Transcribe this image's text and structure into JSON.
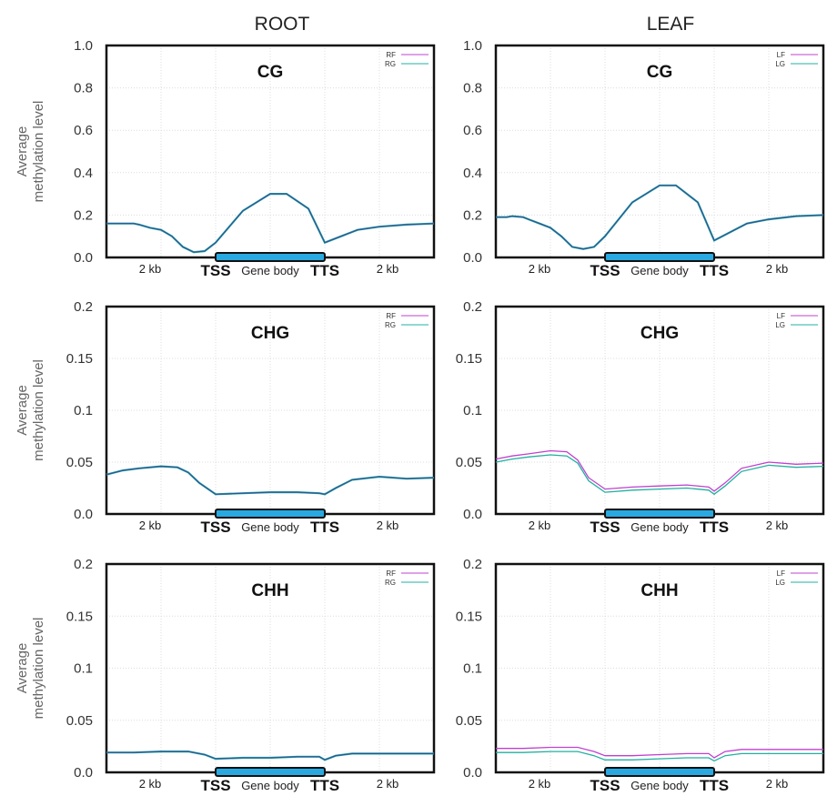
{
  "figure": {
    "column_titles": [
      "ROOT",
      "LEAF"
    ],
    "ylabel_lines": [
      "Average",
      "methylation level"
    ],
    "xaxis_labels": {
      "left_flank": "2 kb",
      "tss": "TSS",
      "gene_body": "Gene body",
      "tts": "TTS",
      "right_flank": "2 kb"
    },
    "colors": {
      "primary_series": "#c040d0",
      "secondary_series": "#20b0a0",
      "blend_line": "#3a4a9a",
      "gene_bar": "#29a9e0"
    }
  },
  "chart_data": [
    {
      "type": "line",
      "column": "ROOT",
      "title": "CG",
      "ylim": [
        0,
        1.0
      ],
      "yticks": [
        0.0,
        0.2,
        0.4,
        0.6,
        0.8,
        1.0
      ],
      "ytick_labels": [
        "0.0",
        "0.2",
        "0.4",
        "0.6",
        "0.8",
        "1.0"
      ],
      "grid": true,
      "legend_placement": "top-right",
      "x": [
        0,
        0.1,
        0.2,
        0.3,
        0.5,
        0.6,
        0.8,
        1.0,
        1.2,
        1.4,
        1.6,
        1.8,
        2.0,
        2.5,
        3.0,
        3.3,
        3.7,
        4.0,
        4.3,
        4.6,
        5.0,
        5.5,
        6.0
      ],
      "series": [
        {
          "name": "RF",
          "values": [
            0.16,
            0.16,
            0.16,
            0.16,
            0.16,
            0.155,
            0.14,
            0.13,
            0.1,
            0.05,
            0.025,
            0.03,
            0.07,
            0.22,
            0.3,
            0.3,
            0.23,
            0.07,
            0.1,
            0.13,
            0.145,
            0.155,
            0.16
          ]
        },
        {
          "name": "RG",
          "values": [
            0.16,
            0.16,
            0.16,
            0.16,
            0.16,
            0.155,
            0.14,
            0.13,
            0.1,
            0.05,
            0.025,
            0.03,
            0.07,
            0.22,
            0.3,
            0.3,
            0.23,
            0.07,
            0.1,
            0.13,
            0.145,
            0.155,
            0.16
          ]
        }
      ]
    },
    {
      "type": "line",
      "column": "LEAF",
      "title": "CG",
      "ylim": [
        0,
        1.0
      ],
      "yticks": [
        0.0,
        0.2,
        0.4,
        0.6,
        0.8,
        1.0
      ],
      "ytick_labels": [
        "0.0",
        "0.2",
        "0.4",
        "0.6",
        "0.8",
        "1.0"
      ],
      "grid": true,
      "legend_placement": "top-right",
      "x": [
        0,
        0.1,
        0.2,
        0.3,
        0.5,
        0.6,
        0.8,
        1.0,
        1.2,
        1.4,
        1.6,
        1.8,
        2.0,
        2.5,
        3.0,
        3.3,
        3.7,
        4.0,
        4.3,
        4.6,
        5.0,
        5.5,
        6.0
      ],
      "series": [
        {
          "name": "LF",
          "values": [
            0.19,
            0.19,
            0.19,
            0.195,
            0.19,
            0.18,
            0.16,
            0.14,
            0.1,
            0.05,
            0.04,
            0.05,
            0.1,
            0.26,
            0.34,
            0.34,
            0.26,
            0.08,
            0.12,
            0.16,
            0.18,
            0.195,
            0.2
          ]
        },
        {
          "name": "LG",
          "values": [
            0.19,
            0.19,
            0.19,
            0.195,
            0.19,
            0.18,
            0.16,
            0.14,
            0.1,
            0.05,
            0.04,
            0.05,
            0.1,
            0.26,
            0.34,
            0.34,
            0.26,
            0.08,
            0.12,
            0.16,
            0.18,
            0.195,
            0.2
          ]
        }
      ]
    },
    {
      "type": "line",
      "column": "ROOT",
      "title": "CHG",
      "ylim": [
        0,
        0.2
      ],
      "yticks": [
        0.0,
        0.05,
        0.1,
        0.15,
        0.2
      ],
      "ytick_labels": [
        "0.0",
        "0.05",
        "0.1",
        "0.15",
        "0.2"
      ],
      "grid": true,
      "legend_placement": "top-right",
      "x": [
        0,
        0.3,
        0.6,
        1.0,
        1.3,
        1.5,
        1.7,
        2.0,
        2.5,
        3.0,
        3.5,
        3.9,
        4.0,
        4.2,
        4.5,
        5.0,
        5.5,
        6.0
      ],
      "series": [
        {
          "name": "RF",
          "values": [
            0.038,
            0.042,
            0.044,
            0.046,
            0.045,
            0.04,
            0.03,
            0.019,
            0.02,
            0.021,
            0.021,
            0.02,
            0.019,
            0.025,
            0.033,
            0.036,
            0.034,
            0.035
          ]
        },
        {
          "name": "RG",
          "values": [
            0.038,
            0.042,
            0.044,
            0.046,
            0.045,
            0.04,
            0.03,
            0.019,
            0.02,
            0.021,
            0.021,
            0.02,
            0.019,
            0.025,
            0.033,
            0.036,
            0.034,
            0.035
          ]
        }
      ]
    },
    {
      "type": "line",
      "column": "LEAF",
      "title": "CHG",
      "ylim": [
        0,
        0.2
      ],
      "yticks": [
        0.0,
        0.05,
        0.1,
        0.15,
        0.2
      ],
      "ytick_labels": [
        "0.0",
        "0.05",
        "0.1",
        "0.15",
        "0.2"
      ],
      "grid": true,
      "legend_placement": "top-right",
      "x": [
        0,
        0.3,
        0.6,
        1.0,
        1.3,
        1.5,
        1.7,
        2.0,
        2.5,
        3.0,
        3.5,
        3.9,
        4.0,
        4.2,
        4.5,
        5.0,
        5.5,
        6.0
      ],
      "series": [
        {
          "name": "LF",
          "values": [
            0.053,
            0.056,
            0.058,
            0.061,
            0.06,
            0.052,
            0.035,
            0.024,
            0.026,
            0.027,
            0.028,
            0.026,
            0.022,
            0.03,
            0.044,
            0.05,
            0.048,
            0.049
          ]
        },
        {
          "name": "LG",
          "values": [
            0.05,
            0.053,
            0.055,
            0.057,
            0.056,
            0.049,
            0.032,
            0.021,
            0.023,
            0.024,
            0.025,
            0.023,
            0.019,
            0.027,
            0.041,
            0.047,
            0.045,
            0.046
          ]
        }
      ]
    },
    {
      "type": "line",
      "column": "ROOT",
      "title": "CHH",
      "ylim": [
        0,
        0.2
      ],
      "yticks": [
        0.0,
        0.05,
        0.1,
        0.15,
        0.2
      ],
      "ytick_labels": [
        "0.0",
        "0.05",
        "0.1",
        "0.15",
        "0.2"
      ],
      "grid": true,
      "legend_placement": "top-right",
      "x": [
        0,
        0.5,
        1.0,
        1.5,
        1.8,
        2.0,
        2.5,
        3.0,
        3.5,
        3.9,
        4.0,
        4.2,
        4.5,
        5.0,
        5.5,
        6.0
      ],
      "series": [
        {
          "name": "RF",
          "values": [
            0.019,
            0.019,
            0.02,
            0.02,
            0.017,
            0.013,
            0.014,
            0.014,
            0.015,
            0.015,
            0.012,
            0.016,
            0.018,
            0.018,
            0.018,
            0.018
          ]
        },
        {
          "name": "RG",
          "values": [
            0.019,
            0.019,
            0.02,
            0.02,
            0.017,
            0.013,
            0.014,
            0.014,
            0.015,
            0.015,
            0.012,
            0.016,
            0.018,
            0.018,
            0.018,
            0.018
          ]
        }
      ]
    },
    {
      "type": "line",
      "column": "LEAF",
      "title": "CHH",
      "ylim": [
        0,
        0.2
      ],
      "yticks": [
        0.0,
        0.05,
        0.1,
        0.15,
        0.2
      ],
      "ytick_labels": [
        "0.0",
        "0.05",
        "0.1",
        "0.15",
        "0.2"
      ],
      "grid": true,
      "legend_placement": "top-right",
      "x": [
        0,
        0.5,
        1.0,
        1.5,
        1.8,
        2.0,
        2.5,
        3.0,
        3.5,
        3.9,
        4.0,
        4.2,
        4.5,
        5.0,
        5.5,
        6.0
      ],
      "series": [
        {
          "name": "LF",
          "values": [
            0.023,
            0.023,
            0.024,
            0.024,
            0.02,
            0.016,
            0.016,
            0.017,
            0.018,
            0.018,
            0.014,
            0.02,
            0.022,
            0.022,
            0.022,
            0.022
          ]
        },
        {
          "name": "LG",
          "values": [
            0.019,
            0.019,
            0.02,
            0.02,
            0.016,
            0.012,
            0.012,
            0.013,
            0.014,
            0.014,
            0.011,
            0.016,
            0.018,
            0.018,
            0.018,
            0.018
          ]
        }
      ]
    }
  ]
}
